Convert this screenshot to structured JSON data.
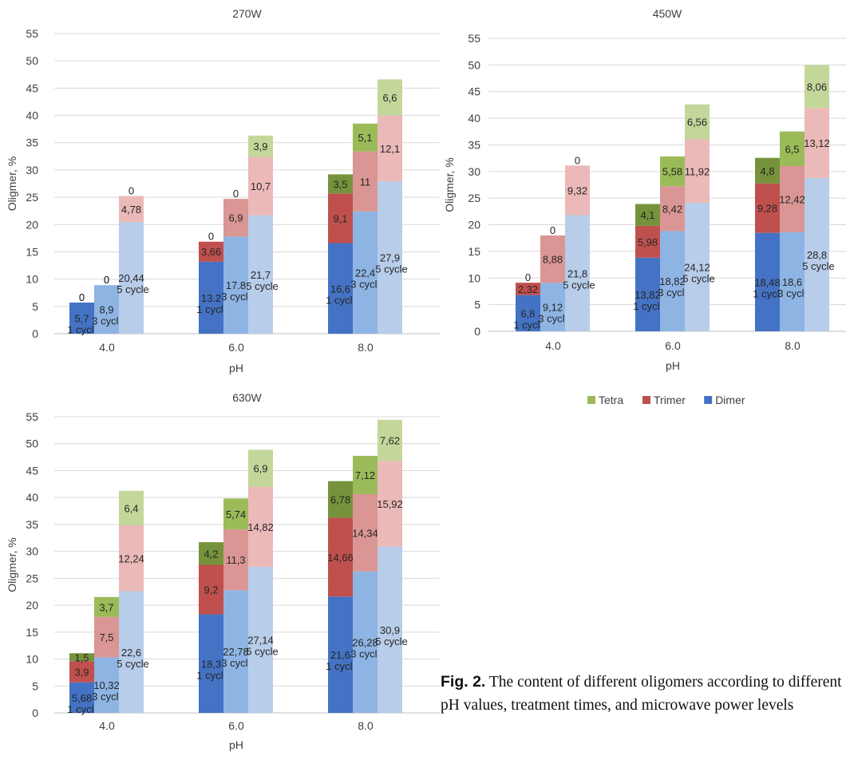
{
  "figure": {
    "caption_label": "Fig. 2.",
    "caption_text": "The content of different oligomers according to different pH values, treatment times, and microwave power levels",
    "colors": {
      "dimer": [
        "#4472c4",
        "#8eb4e3",
        "#b8cde9"
      ],
      "trimer": [
        "#c0504d",
        "#da9694",
        "#ebb9b8"
      ],
      "tetra": [
        "#76933c",
        "#9bbb59",
        "#c4d79b"
      ]
    }
  },
  "legend": [
    {
      "name": "Tetra",
      "color": "#9bbb59"
    },
    {
      "name": "Trimer",
      "color": "#c0504d"
    },
    {
      "name": "Dimer",
      "color": "#4472c4"
    }
  ],
  "chart_data": [
    {
      "type": "bar",
      "stacked": true,
      "title": "270W",
      "xlabel": "pH",
      "ylabel": "Oligmer, %",
      "ylim": [
        0,
        55
      ],
      "yticks": [
        0,
        5,
        10,
        15,
        20,
        25,
        30,
        35,
        40,
        45,
        50,
        55
      ],
      "categories": [
        "4.0",
        "6.0",
        "8.0"
      ],
      "cycles": [
        "1 cycle",
        "3 cycle",
        "5 cycle"
      ],
      "grid": true,
      "series": [
        {
          "name": "Dimer",
          "values": [
            [
              5.7,
              8.9,
              20.44
            ],
            [
              13.2,
              17.8,
              21.7
            ],
            [
              16.6,
              22.4,
              27.9
            ]
          ],
          "labels": [
            [
              "5,7",
              "8,9",
              "20,44"
            ],
            [
              "13.2",
              "17.8",
              "21,7"
            ],
            [
              "16,6",
              "22,4",
              "27,9"
            ]
          ]
        },
        {
          "name": "Trimer",
          "values": [
            [
              0,
              0,
              4.78
            ],
            [
              3.66,
              6.9,
              10.7
            ],
            [
              9.1,
              11,
              12.1
            ]
          ],
          "labels": [
            [
              "0",
              "0",
              "4,78"
            ],
            [
              "3,66",
              "6,9",
              "10,7"
            ],
            [
              "9,1",
              "11",
              "12,1"
            ]
          ]
        },
        {
          "name": "Tetra",
          "values": [
            [
              0,
              0,
              0
            ],
            [
              0,
              0,
              3.9
            ],
            [
              3.5,
              5.1,
              6.6
            ]
          ],
          "labels": [
            [
              "0",
              "0",
              "0"
            ],
            [
              "0",
              "0",
              "3,9"
            ],
            [
              "3,5",
              "5,1",
              "6,6"
            ]
          ]
        }
      ]
    },
    {
      "type": "bar",
      "stacked": true,
      "title": "450W",
      "xlabel": "pH",
      "ylabel": "Oligmer, %",
      "ylim": [
        0,
        55
      ],
      "yticks": [
        0,
        5,
        10,
        15,
        20,
        25,
        30,
        35,
        40,
        45,
        50,
        55
      ],
      "categories": [
        "4.0",
        "6.0",
        "8.0"
      ],
      "cycles": [
        "1 cycle",
        "3 cycle",
        "5 cycle"
      ],
      "grid": true,
      "series": [
        {
          "name": "Dimer",
          "values": [
            [
              6.8,
              9.12,
              21.8
            ],
            [
              13.82,
              18.82,
              24.12
            ],
            [
              18.48,
              18.6,
              28.8
            ]
          ],
          "labels": [
            [
              "6,8",
              "9,12",
              "21,8"
            ],
            [
              "13,82",
              "18,82",
              "24,12"
            ],
            [
              "18,48",
              "18,6",
              "28,8"
            ]
          ]
        },
        {
          "name": "Trimer",
          "values": [
            [
              2.32,
              8.88,
              9.32
            ],
            [
              5.98,
              8.42,
              11.92
            ],
            [
              9.28,
              12.42,
              13.12
            ]
          ],
          "labels": [
            [
              "2,32",
              "8,88",
              "9,32"
            ],
            [
              "5,98",
              "8,42",
              "11,92"
            ],
            [
              "9,28",
              "12,42",
              "13,12"
            ]
          ]
        },
        {
          "name": "Tetra",
          "values": [
            [
              0,
              0,
              0
            ],
            [
              4.1,
              5.58,
              6.56
            ],
            [
              4.8,
              6.5,
              8.06
            ]
          ],
          "labels": [
            [
              "0",
              "0",
              "0"
            ],
            [
              "4,1",
              "5,58",
              "6,56"
            ],
            [
              "4,8",
              "6,5",
              "8,06"
            ]
          ]
        }
      ]
    },
    {
      "type": "bar",
      "stacked": true,
      "title": "630W",
      "xlabel": "pH",
      "ylabel": "Oligmer, %",
      "ylim": [
        0,
        55
      ],
      "yticks": [
        0,
        5,
        10,
        15,
        20,
        25,
        30,
        35,
        40,
        45,
        50,
        55
      ],
      "categories": [
        "4.0",
        "6.0",
        "8.0"
      ],
      "cycles": [
        "1 cycle",
        "3 cycle",
        "5 cycle"
      ],
      "grid": true,
      "series": [
        {
          "name": "Dimer",
          "values": [
            [
              5.68,
              10.32,
              22.6
            ],
            [
              18.3,
              22.78,
              27.14
            ],
            [
              21.6,
              26.28,
              30.9
            ]
          ],
          "labels": [
            [
              "5,68",
              "10,32",
              "22,6"
            ],
            [
              "18,3",
              "22,78",
              "27,14"
            ],
            [
              "21,6",
              "26,28",
              "30,9"
            ]
          ]
        },
        {
          "name": "Trimer",
          "values": [
            [
              3.9,
              7.5,
              12.24
            ],
            [
              9.2,
              11.3,
              14.82
            ],
            [
              14.66,
              14.34,
              15.92
            ]
          ],
          "labels": [
            [
              "3,9",
              "7,5",
              "12,24"
            ],
            [
              "9,2",
              "11,3",
              "14,82"
            ],
            [
              "14,66",
              "14,34",
              "15,92"
            ]
          ]
        },
        {
          "name": "Tetra",
          "values": [
            [
              1.5,
              3.7,
              6.4
            ],
            [
              4.2,
              5.74,
              6.9
            ],
            [
              6.78,
              7.12,
              7.62
            ]
          ],
          "labels": [
            [
              "1,5",
              "3,7",
              "6,4"
            ],
            [
              "4,2",
              "5,74",
              "6,9"
            ],
            [
              "6,78",
              "7,12",
              "7,62"
            ]
          ]
        }
      ]
    }
  ]
}
